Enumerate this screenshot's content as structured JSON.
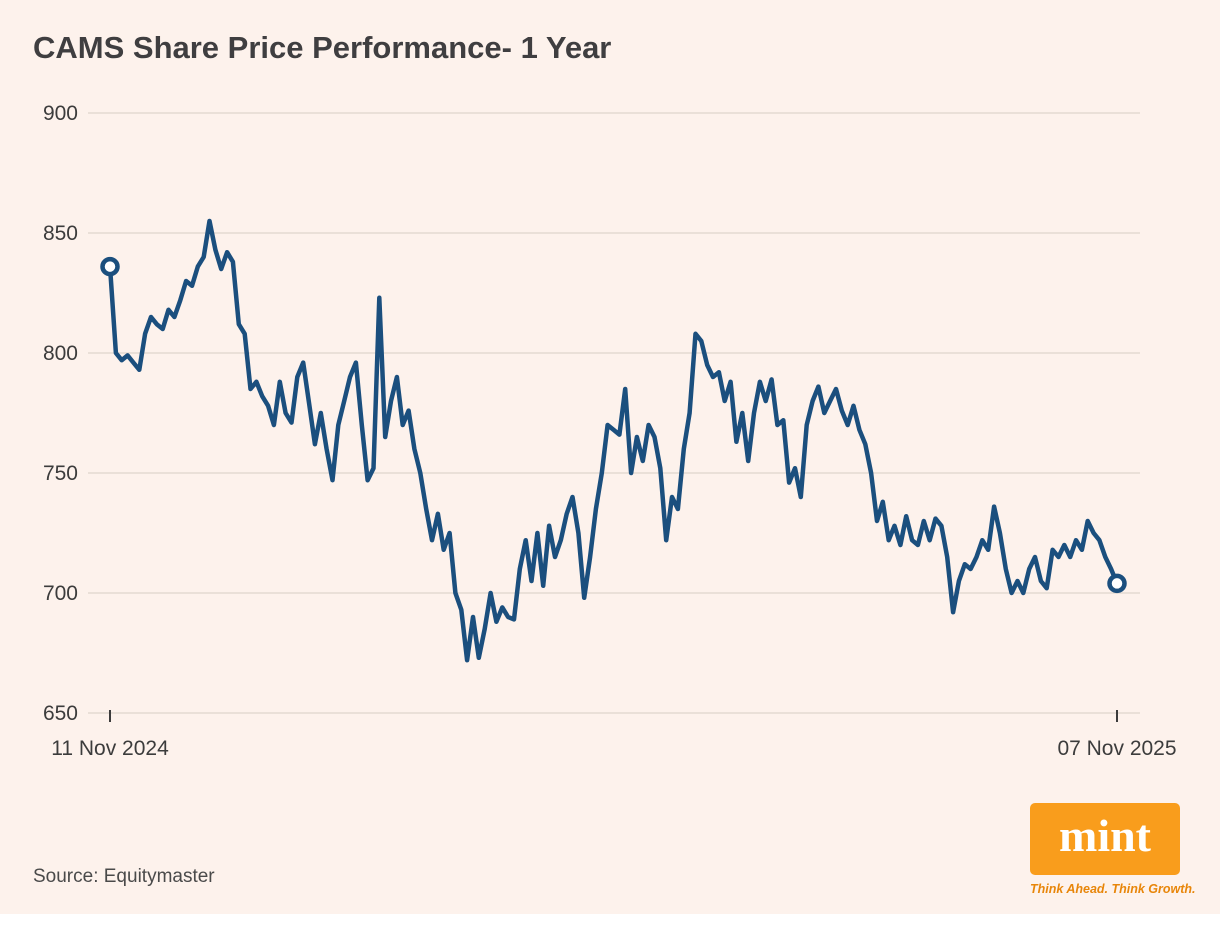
{
  "chart_data": {
    "type": "line",
    "title": "CAMS Share Price Performance- 1 Year",
    "xlabel": "",
    "ylabel": "",
    "x_start_label": "11 Nov 2024",
    "x_end_label": "07 Nov 2025",
    "ylim": [
      650,
      900
    ],
    "yticks": [
      650,
      700,
      750,
      800,
      850,
      900
    ],
    "grid": "horizontal",
    "legend": "none",
    "line_color": "#1b4f7e",
    "grid_color": "#e3d9d2",
    "axis_text_color": "#3c3c3c",
    "background_color": "#fdf2ec",
    "marker_style": "open-circle-at-endpoints",
    "start_value": 836,
    "end_value": 704,
    "values": [
      836,
      800,
      797,
      799,
      796,
      793,
      808,
      815,
      812,
      810,
      818,
      815,
      822,
      830,
      828,
      836,
      840,
      855,
      843,
      835,
      842,
      838,
      812,
      808,
      785,
      788,
      782,
      778,
      770,
      788,
      775,
      771,
      790,
      796,
      779,
      762,
      775,
      760,
      747,
      770,
      780,
      790,
      796,
      770,
      747,
      752,
      823,
      765,
      780,
      790,
      770,
      776,
      760,
      750,
      735,
      722,
      733,
      718,
      725,
      700,
      693,
      672,
      690,
      673,
      685,
      700,
      688,
      694,
      690,
      689,
      710,
      722,
      705,
      725,
      703,
      728,
      715,
      722,
      733,
      740,
      725,
      698,
      715,
      735,
      750,
      770,
      768,
      766,
      785,
      750,
      765,
      755,
      770,
      765,
      752,
      722,
      740,
      735,
      760,
      775,
      808,
      805,
      795,
      790,
      792,
      780,
      788,
      763,
      775,
      755,
      775,
      788,
      780,
      789,
      770,
      772,
      746,
      752,
      740,
      770,
      780,
      786,
      775,
      780,
      785,
      776,
      770,
      778,
      768,
      762,
      750,
      730,
      738,
      722,
      728,
      720,
      732,
      722,
      720,
      730,
      722,
      731,
      728,
      715,
      692,
      705,
      712,
      710,
      715,
      722,
      718,
      736,
      725,
      710,
      700,
      705,
      700,
      710,
      715,
      705,
      702,
      718,
      715,
      720,
      715,
      722,
      718,
      730,
      725,
      722,
      715,
      710,
      704
    ]
  },
  "footer": {
    "source": "Source: Equitymaster"
  },
  "branding": {
    "logo_text": "mint",
    "tagline": "Think Ahead. Think Growth.",
    "logo_color": "#f99d1c"
  }
}
